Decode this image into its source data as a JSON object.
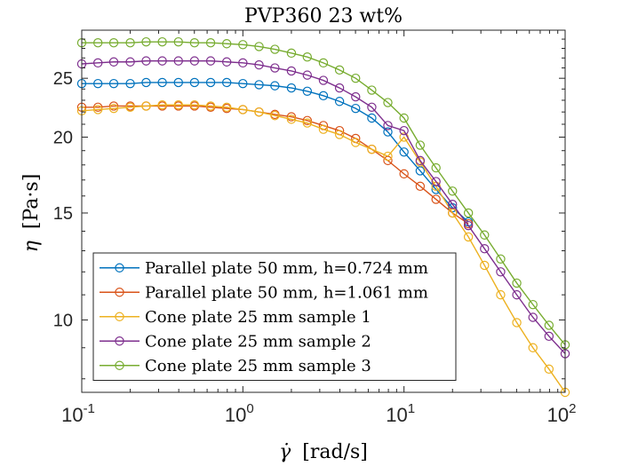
{
  "chart_data": {
    "type": "line",
    "title": "PVP360 23 wt%",
    "xlabel_symbol": "γ̇",
    "xlabel_unit": "[rad/s]",
    "ylabel_symbol": "η",
    "ylabel_unit": "[Pa·s]",
    "xscale": "log",
    "yscale": "log",
    "xlim": [
      0.1,
      100
    ],
    "ylim": [
      7.6,
      30
    ],
    "x_ticks": [
      {
        "base": "10",
        "exp": "-1",
        "value": 0.1
      },
      {
        "base": "10",
        "exp": "0",
        "value": 1
      },
      {
        "base": "10",
        "exp": "1",
        "value": 10
      },
      {
        "base": "10",
        "exp": "2",
        "value": 100
      }
    ],
    "y_ticks": [
      {
        "label": "10",
        "value": 10
      },
      {
        "label": "15",
        "value": 15
      },
      {
        "label": "20",
        "value": 20
      },
      {
        "label": "25",
        "value": 25
      }
    ],
    "grid": false,
    "legend_position": "bottom-left",
    "marker": "open circle",
    "series": [
      {
        "name": "Parallel plate 50 mm, h=0.724 mm",
        "color": "#0072BD",
        "x": [
          0.1,
          0.126,
          0.158,
          0.2,
          0.251,
          0.316,
          0.398,
          0.501,
          0.631,
          0.794,
          1,
          1.26,
          1.58,
          2,
          2.51,
          3.16,
          3.98,
          5.01,
          6.31,
          7.94,
          10,
          12.6,
          15.8,
          20,
          25.1
        ],
        "y": [
          24.5,
          24.5,
          24.5,
          24.5,
          24.6,
          24.6,
          24.6,
          24.6,
          24.6,
          24.6,
          24.5,
          24.4,
          24.3,
          24.1,
          23.8,
          23.4,
          22.9,
          22.3,
          21.5,
          20.4,
          18.9,
          17.6,
          16.4,
          15.3,
          14.5
        ]
      },
      {
        "name": "Parallel plate 50 mm, h=1.061 mm",
        "color": "#D95319",
        "x": [
          0.1,
          0.126,
          0.158,
          0.2,
          0.251,
          0.316,
          0.398,
          0.501,
          0.631,
          0.794,
          1,
          1.26,
          1.58,
          2,
          2.51,
          3.16,
          3.98,
          5.01,
          6.31,
          7.94,
          10,
          12.6,
          15.8,
          20,
          25.1
        ],
        "y": [
          22.4,
          22.4,
          22.5,
          22.5,
          22.5,
          22.5,
          22.5,
          22.5,
          22.4,
          22.3,
          22.2,
          22.0,
          21.8,
          21.6,
          21.3,
          20.9,
          20.5,
          19.9,
          19.1,
          18.3,
          17.4,
          16.6,
          15.8,
          15.0,
          14.4
        ]
      },
      {
        "name": "Cone plate 25 mm sample 1",
        "color": "#EDB120",
        "x": [
          0.1,
          0.126,
          0.158,
          0.2,
          0.251,
          0.316,
          0.398,
          0.501,
          0.631,
          0.794,
          1,
          1.26,
          1.58,
          2,
          2.51,
          3.16,
          3.98,
          5.01,
          6.31,
          7.94,
          10,
          12.6,
          15.8,
          20,
          25.1,
          31.6,
          39.8,
          50.1,
          63.1,
          79.4,
          100
        ],
        "y": [
          22.1,
          22.2,
          22.3,
          22.4,
          22.5,
          22.6,
          22.6,
          22.6,
          22.5,
          22.4,
          22.2,
          22.0,
          21.7,
          21.4,
          21.1,
          20.6,
          20.2,
          19.6,
          19.1,
          18.6,
          20.0,
          18.2,
          16.6,
          15.0,
          13.7,
          12.3,
          11.0,
          9.9,
          9.0,
          8.3,
          7.6
        ]
      },
      {
        "name": "Cone plate 25 mm sample 2",
        "color": "#7E2F8E",
        "x": [
          0.1,
          0.126,
          0.158,
          0.2,
          0.251,
          0.316,
          0.398,
          0.501,
          0.631,
          0.794,
          1,
          1.26,
          1.58,
          2,
          2.51,
          3.16,
          3.98,
          5.01,
          6.31,
          7.94,
          10,
          12.6,
          15.8,
          20,
          25.1,
          31.6,
          39.8,
          50.1,
          63.1,
          79.4,
          100
        ],
        "y": [
          26.4,
          26.5,
          26.6,
          26.6,
          26.7,
          26.7,
          26.7,
          26.7,
          26.7,
          26.6,
          26.5,
          26.3,
          26.0,
          25.7,
          25.3,
          24.8,
          24.1,
          23.3,
          22.4,
          20.9,
          20.5,
          18.3,
          16.9,
          15.5,
          14.3,
          13.1,
          12.0,
          11.0,
          10.1,
          9.4,
          8.8
        ]
      },
      {
        "name": "Cone plate 25 mm sample 3",
        "color": "#77AC30",
        "x": [
          0.1,
          0.126,
          0.158,
          0.2,
          0.251,
          0.316,
          0.398,
          0.501,
          0.631,
          0.794,
          1,
          1.26,
          1.58,
          2,
          2.51,
          3.16,
          3.98,
          5.01,
          6.31,
          7.94,
          10,
          12.6,
          15.8,
          20,
          25.1,
          31.6,
          39.8,
          50.1,
          63.1,
          79.4,
          100
        ],
        "y": [
          28.6,
          28.6,
          28.6,
          28.6,
          28.7,
          28.7,
          28.7,
          28.6,
          28.6,
          28.5,
          28.4,
          28.2,
          27.9,
          27.5,
          27.1,
          26.5,
          25.8,
          25.0,
          23.9,
          22.8,
          21.5,
          19.4,
          17.8,
          16.3,
          15.0,
          13.8,
          12.6,
          11.5,
          10.6,
          9.8,
          9.1
        ]
      }
    ]
  }
}
